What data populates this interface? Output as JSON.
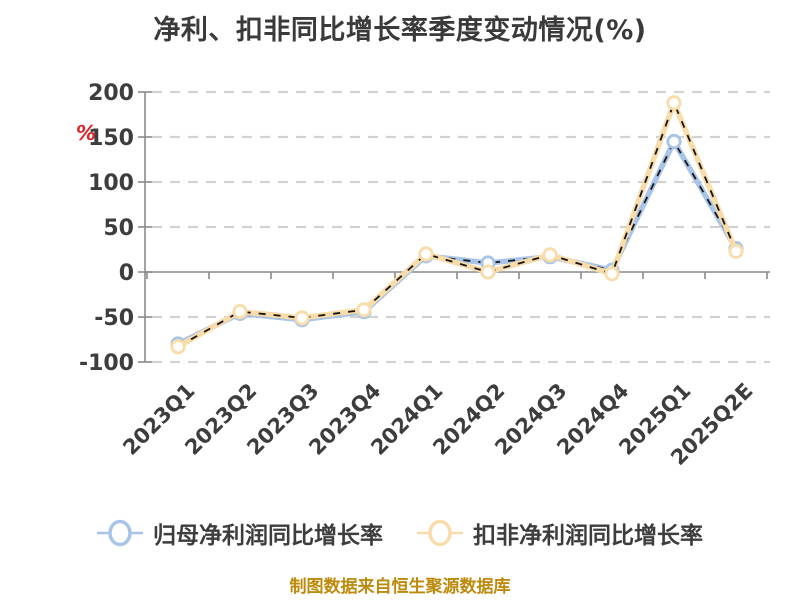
{
  "title": "净利、扣非同比增长率季度变动情况(%)",
  "footer": "制图数据来自恒生聚源数据库",
  "chart_data": {
    "type": "line",
    "title": "净利、扣非同比增长率季度变动情况(%)",
    "unit_label": "%",
    "categories": [
      "2023Q1",
      "2023Q2",
      "2023Q3",
      "2023Q4",
      "2024Q1",
      "2024Q2",
      "2024Q3",
      "2024Q4",
      "2025Q1",
      "2025Q2E"
    ],
    "series": [
      {
        "name": "归母净利润同比增长率",
        "color": "#a8c4e6",
        "values": [
          -80,
          -46,
          -53,
          -44,
          18,
          10,
          17,
          2,
          145,
          26
        ]
      },
      {
        "name": "扣非净利润同比增长率",
        "color": "#f8dcaa",
        "values": [
          -83,
          -44,
          -51,
          -42,
          20,
          0,
          19,
          -2,
          188,
          23
        ]
      }
    ],
    "yticks": [
      200,
      150,
      100,
      50,
      0,
      -50,
      -100
    ],
    "ylim": [
      -100,
      200
    ],
    "grid": "horizontal-dashed",
    "legend_position": "bottom",
    "marker": "circle-white-fill",
    "line_overlay": "black-dashed"
  },
  "colors": {
    "background": "#ffffff",
    "title": "#3a3a3a",
    "axis": "#8a8a8a",
    "gridline": "#d2d2d2",
    "tick_label": "#3d3d3d",
    "unit_label": "#dd2222",
    "dash_overlay": "#141414",
    "footer": "#bd8a0b"
  }
}
